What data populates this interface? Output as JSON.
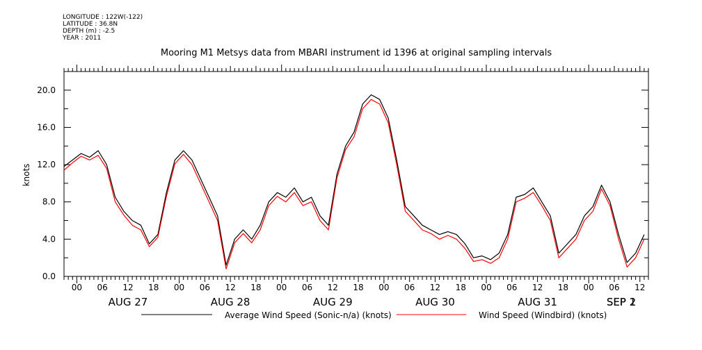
{
  "header": {
    "longitude": "LONGITUDE : 122W(-122)",
    "latitude": "LATITUDE : 36.8N",
    "depth": "DEPTH (m) : -2.5",
    "year": "YEAR : 2011"
  },
  "chart_data": {
    "type": "line",
    "title": "Mooring M1 Metsys data from MBARI instrument id 1396 at original sampling intervals",
    "ylabel": "knots",
    "xlabel": "",
    "x_unit": "hours since AUG 27 00:00",
    "xlim": [
      -3,
      134
    ],
    "ylim": [
      0,
      22
    ],
    "y_ticks": [
      0,
      4,
      8,
      12,
      16,
      20
    ],
    "y_tick_labels": [
      "0.0",
      "4.0",
      "8.0",
      "12.0",
      "16.0",
      "20.0"
    ],
    "x_hour_ticks": [
      0,
      6,
      12,
      18,
      24,
      30,
      36,
      42,
      48,
      54,
      60,
      66,
      72,
      78,
      84,
      90,
      96,
      102,
      108,
      114,
      120,
      126,
      132
    ],
    "x_hour_labels": [
      "00",
      "06",
      "12",
      "18",
      "00",
      "06",
      "12",
      "18",
      "00",
      "06",
      "12",
      "18",
      "00",
      "06",
      "12",
      "18",
      "00",
      "06",
      "12",
      "18",
      "00",
      "06",
      "12"
    ],
    "day_labels": [
      {
        "x": 12,
        "label": "AUG 27"
      },
      {
        "x": 36,
        "label": "AUG 28"
      },
      {
        "x": 60,
        "label": "AUG 29"
      },
      {
        "x": 84,
        "label": "AUG 30"
      },
      {
        "x": 108,
        "label": "AUG 31"
      },
      {
        "x": 132,
        "label": "SEP  1"
      },
      {
        "x": 156,
        "label": "SEP  2"
      }
    ],
    "grid": false,
    "legend_position": "bottom",
    "series": [
      {
        "name": "Average Wind Speed (Sonic-n/a) (knots)",
        "color": "#000000",
        "x": [
          -3,
          -1,
          1,
          3,
          5,
          7,
          9,
          11,
          13,
          15,
          17,
          19,
          21,
          23,
          25,
          27,
          29,
          31,
          33,
          35,
          37,
          39,
          41,
          43,
          45,
          47,
          49,
          51,
          53,
          55,
          57,
          59,
          61,
          63,
          65,
          67,
          69,
          71,
          73,
          75,
          77,
          79,
          81,
          83,
          85,
          87,
          89,
          91,
          93,
          95,
          97,
          99,
          101,
          103,
          105,
          107,
          109,
          111,
          113,
          115,
          117,
          119,
          121,
          123,
          125,
          127,
          129,
          131,
          133
        ],
        "y": [
          11.8,
          12.5,
          13.2,
          12.8,
          13.5,
          12.0,
          8.5,
          7.0,
          6.0,
          5.5,
          3.5,
          4.5,
          9.0,
          12.5,
          13.5,
          12.5,
          10.5,
          8.5,
          6.5,
          1.2,
          4.0,
          5.0,
          4.0,
          5.5,
          8.0,
          9.0,
          8.5,
          9.5,
          8.0,
          8.5,
          6.5,
          5.5,
          11.0,
          14.0,
          15.5,
          18.5,
          19.5,
          19.0,
          17.0,
          12.5,
          7.5,
          6.5,
          5.5,
          5.0,
          4.5,
          4.8,
          4.5,
          3.5,
          2.0,
          2.2,
          1.8,
          2.5,
          4.5,
          8.5,
          8.8,
          9.5,
          8.0,
          6.5,
          2.5,
          3.5,
          4.5,
          6.5,
          7.5,
          9.8,
          8.0,
          4.5,
          1.5,
          2.5,
          4.5
        ]
      },
      {
        "name": "Wind Speed (Windbird) (knots)",
        "color": "#ff0000",
        "x": [
          -3,
          -1,
          1,
          3,
          5,
          7,
          9,
          11,
          13,
          15,
          17,
          19,
          21,
          23,
          25,
          27,
          29,
          31,
          33,
          35,
          37,
          39,
          41,
          43,
          45,
          47,
          49,
          51,
          53,
          55,
          57,
          59,
          61,
          63,
          65,
          67,
          69,
          71,
          73,
          75,
          77,
          79,
          81,
          83,
          85,
          87,
          89,
          91,
          93,
          95,
          97,
          99,
          101,
          103,
          105,
          107,
          109,
          111,
          113,
          115,
          117,
          119,
          121,
          123,
          125,
          127,
          129,
          131,
          133
        ],
        "y": [
          11.4,
          12.2,
          12.9,
          12.5,
          13.0,
          11.6,
          8.0,
          6.6,
          5.5,
          5.0,
          3.2,
          4.2,
          8.6,
          12.1,
          13.1,
          12.0,
          10.0,
          8.0,
          6.0,
          0.8,
          3.6,
          4.6,
          3.6,
          5.0,
          7.6,
          8.6,
          8.0,
          9.0,
          7.6,
          8.0,
          6.0,
          5.0,
          10.6,
          13.6,
          15.0,
          18.0,
          19.0,
          18.5,
          16.5,
          12.0,
          7.0,
          6.0,
          5.0,
          4.6,
          4.0,
          4.4,
          4.0,
          3.0,
          1.6,
          1.8,
          1.4,
          2.0,
          4.0,
          8.0,
          8.4,
          9.0,
          7.6,
          6.0,
          2.0,
          3.0,
          4.0,
          6.0,
          7.0,
          9.4,
          7.6,
          4.0,
          1.0,
          2.0,
          4.0
        ]
      }
    ]
  }
}
